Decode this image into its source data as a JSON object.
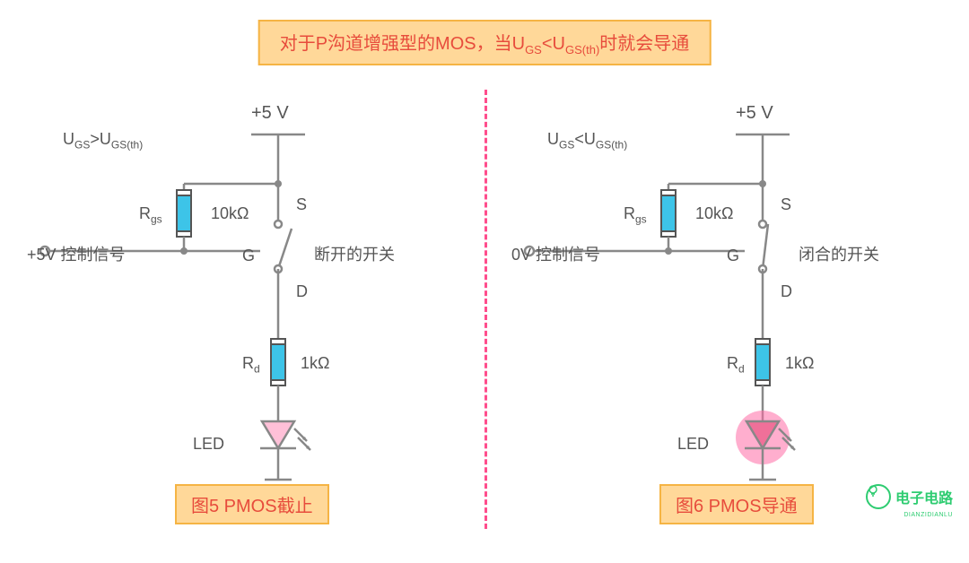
{
  "title_html": "对于P沟道增强型的MOS，当U<sub>GS</sub>&lt;U<sub>GS(th)</sub>时就会导通",
  "colors": {
    "banner_bg": "#ffd899",
    "banner_border": "#f5b444",
    "banner_text": "#e74c3c",
    "wire": "#888888",
    "resistor": "#3dc4e8",
    "led_off": "#ffc0d8",
    "led_on": "#f07099",
    "led_glow": "#ff6ba6",
    "divider": "#ff4d8c",
    "logo": "#2ecc71"
  },
  "common": {
    "voltage_top": "+5 V",
    "rgs_label": "R<sub>gs</sub>",
    "rgs_value": "10kΩ",
    "rd_label": "R<sub>d</sub>",
    "rd_value": "1kΩ",
    "led_label": "LED",
    "terminals": {
      "S": "S",
      "G": "G",
      "D": "D"
    }
  },
  "left": {
    "condition_html": "U<sub>GS</sub>&gt;U<sub>GS(th)</sub>",
    "signal": "+5V 控制信号",
    "switch_state": "断开的开关",
    "switch_closed": false,
    "led_on": false,
    "caption": "图5 PMOS截止"
  },
  "right": {
    "condition_html": "U<sub>GS</sub>&lt;U<sub>GS(th)</sub>",
    "signal": "0V 控制信号",
    "switch_state": "闭合的开关",
    "switch_closed": true,
    "led_on": true,
    "caption": "图6 PMOS导通"
  },
  "logo": {
    "text": "电子电路",
    "sub": "DIANZIDIANLU"
  }
}
